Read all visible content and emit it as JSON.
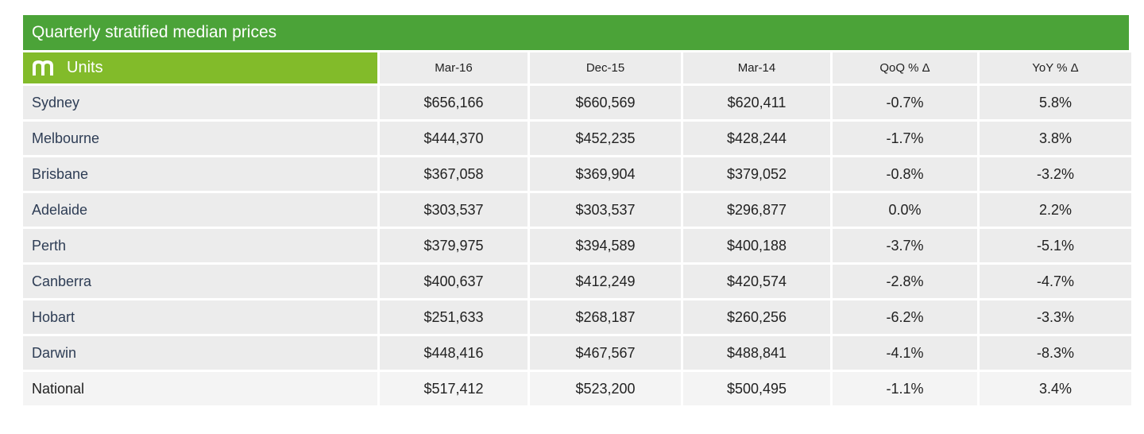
{
  "title": "Quarterly stratified median prices",
  "header": {
    "brand_icon": "m-logo-icon",
    "label": "Units",
    "columns": [
      "Mar-16",
      "Dec-15",
      "Mar-14",
      "QoQ % Δ",
      "YoY % Δ"
    ]
  },
  "colors": {
    "title_bar": "#4ba338",
    "units_header": "#82bb2a",
    "cell_bg": "#ececec"
  },
  "chart_data": {
    "type": "table",
    "title": "Quarterly stratified median prices",
    "row_header": "Units",
    "columns": [
      "Mar-16",
      "Dec-15",
      "Mar-14",
      "QoQ % Δ",
      "YoY % Δ"
    ],
    "rows": [
      {
        "city": "Sydney",
        "values": [
          "$656,166",
          "$660,569",
          "$620,411",
          "-0.7%",
          "5.8%"
        ]
      },
      {
        "city": "Melbourne",
        "values": [
          "$444,370",
          "$452,235",
          "$428,244",
          "-1.7%",
          "3.8%"
        ]
      },
      {
        "city": "Brisbane",
        "values": [
          "$367,058",
          "$369,904",
          "$379,052",
          "-0.8%",
          "-3.2%"
        ]
      },
      {
        "city": "Adelaide",
        "values": [
          "$303,537",
          "$303,537",
          "$296,877",
          "0.0%",
          "2.2%"
        ]
      },
      {
        "city": "Perth",
        "values": [
          "$379,975",
          "$394,589",
          "$400,188",
          "-3.7%",
          "-5.1%"
        ]
      },
      {
        "city": "Canberra",
        "values": [
          "$400,637",
          "$412,249",
          "$420,574",
          "-2.8%",
          "-4.7%"
        ]
      },
      {
        "city": "Hobart",
        "values": [
          "$251,633",
          "$268,187",
          "$260,256",
          "-6.2%",
          "-3.3%"
        ]
      },
      {
        "city": "Darwin",
        "values": [
          "$448,416",
          "$467,567",
          "$488,841",
          "-4.1%",
          "-8.3%"
        ]
      },
      {
        "city": "National",
        "values": [
          "$517,412",
          "$523,200",
          "$500,495",
          "-1.1%",
          "3.4%"
        ]
      }
    ]
  }
}
